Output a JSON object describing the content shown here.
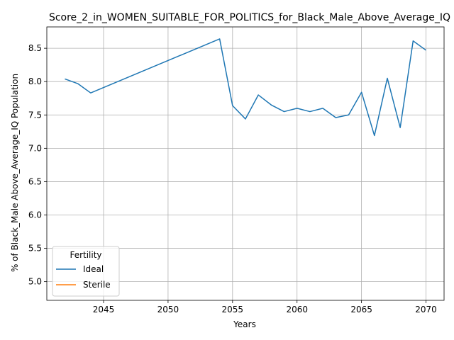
{
  "chart_data": {
    "type": "line",
    "title": "Score_2_in_WOMEN_SUITABLE_FOR_POLITICS_for_Black_Male_Above_Average_IQ",
    "xlabel": "Years",
    "ylabel": "% of Black_Male Above_Average_IQ Population",
    "xlim": [
      2040.6,
      2071.4
    ],
    "ylim": [
      4.72,
      8.82
    ],
    "xticks": [
      2045,
      2050,
      2055,
      2060,
      2065,
      2070
    ],
    "yticks": [
      5.0,
      5.5,
      6.0,
      6.5,
      7.0,
      7.5,
      8.0,
      8.5
    ],
    "grid": true,
    "legend": {
      "title": "Fertility",
      "placement": "lower-left",
      "entries": [
        "Ideal",
        "Sterile"
      ]
    },
    "series": [
      {
        "name": "Ideal",
        "color": "#1f77b4",
        "x": [
          2042,
          2043,
          2044,
          2054,
          2055,
          2056,
          2057,
          2058,
          2059,
          2060,
          2061,
          2062,
          2063,
          2064,
          2065,
          2066,
          2067,
          2068,
          2069,
          2070
        ],
        "y": [
          8.04,
          7.97,
          7.83,
          8.64,
          7.64,
          7.44,
          7.8,
          7.65,
          7.55,
          7.6,
          7.55,
          7.6,
          7.46,
          7.5,
          7.84,
          7.19,
          8.05,
          7.31,
          8.61,
          8.47
        ]
      },
      {
        "name": "Sterile",
        "color": "#ff7f0e",
        "x": [],
        "y": []
      }
    ]
  }
}
